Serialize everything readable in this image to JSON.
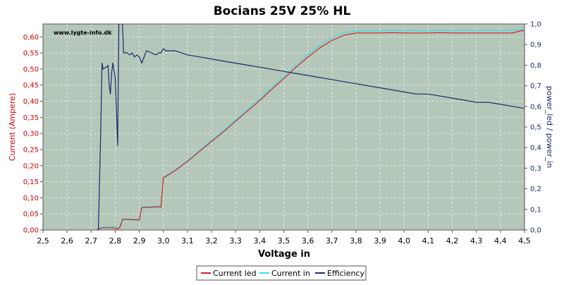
{
  "chart_data": {
    "type": "line",
    "title": "Bocians 25V 25% HL",
    "watermark": "www.lygte-info.dk",
    "xlabel": "Voltage in",
    "ylabel_left": "Current (Ampere)",
    "ylabel_right": "power_led / power_in",
    "xlim": [
      2.5,
      4.5
    ],
    "ylim_left": [
      0,
      0.64
    ],
    "ylim_right": [
      0,
      1.0
    ],
    "x_ticks": [
      "2,5",
      "2,6",
      "2,7",
      "2,8",
      "2,9",
      "3,0",
      "3,1",
      "3,2",
      "3,3",
      "3,4",
      "3,5",
      "3,6",
      "3,7",
      "3,8",
      "3,9",
      "4,0",
      "4,1",
      "4,2",
      "4,3",
      "4,4",
      "4,5"
    ],
    "y_left_ticks": [
      "0,00",
      "0,05",
      "0,10",
      "0,15",
      "0,20",
      "0,25",
      "0,30",
      "0,35",
      "0,40",
      "0,45",
      "0,50",
      "0,55",
      "0,60"
    ],
    "y_right_ticks": [
      "0,0",
      "0,1",
      "0,2",
      "0,3",
      "0,4",
      "0,5",
      "0,6",
      "0,7",
      "0,8",
      "0,9",
      "1,0"
    ],
    "grid": true,
    "legend_position": "bottom-center",
    "colors": {
      "current_led": "#d42020",
      "current_in": "#33e0ee",
      "efficiency": "#1a2a6e",
      "plot_bg": "#b5c7b9",
      "grid": "#e6ece6"
    },
    "series": [
      {
        "name": "Current led",
        "axis": "left",
        "x": [
          2.72,
          2.73,
          2.74,
          2.75,
          2.78,
          2.8,
          2.81,
          2.82,
          2.83,
          2.84,
          2.87,
          2.9,
          2.91,
          2.92,
          2.95,
          2.98,
          2.99,
          3.0,
          3.05,
          3.1,
          3.15,
          3.2,
          3.25,
          3.3,
          3.35,
          3.4,
          3.45,
          3.5,
          3.55,
          3.6,
          3.65,
          3.7,
          3.75,
          3.8,
          3.85,
          3.9,
          3.95,
          4.0,
          4.05,
          4.1,
          4.15,
          4.2,
          4.25,
          4.3,
          4.35,
          4.4,
          4.45,
          4.48,
          4.5
        ],
        "values": [
          0.0,
          0.002,
          0.006,
          0.007,
          0.007,
          0.006,
          0.003,
          0.009,
          0.032,
          0.033,
          0.032,
          0.031,
          0.069,
          0.07,
          0.071,
          0.072,
          0.071,
          0.162,
          0.185,
          0.213,
          0.244,
          0.275,
          0.305,
          0.338,
          0.37,
          0.402,
          0.437,
          0.47,
          0.505,
          0.537,
          0.566,
          0.589,
          0.605,
          0.612,
          0.612,
          0.612,
          0.613,
          0.612,
          0.612,
          0.612,
          0.613,
          0.612,
          0.612,
          0.612,
          0.612,
          0.612,
          0.612,
          0.618,
          0.62
        ]
      },
      {
        "name": "Current in",
        "axis": "left",
        "x": [
          2.72,
          2.73,
          2.74,
          2.75,
          2.78,
          2.8,
          2.81,
          2.82,
          2.83,
          2.84,
          2.87,
          2.9,
          2.91,
          2.92,
          2.95,
          2.98,
          2.99,
          3.0,
          3.05,
          3.1,
          3.15,
          3.2,
          3.25,
          3.3,
          3.35,
          3.4,
          3.45,
          3.5,
          3.55,
          3.6,
          3.65,
          3.7,
          3.75,
          3.8,
          3.85,
          3.9,
          3.95,
          4.0,
          4.05,
          4.1,
          4.15,
          4.2,
          4.25,
          4.3,
          4.35,
          4.4,
          4.45,
          4.48,
          4.5
        ],
        "values": [
          0.0,
          0.003,
          0.008,
          0.009,
          0.009,
          0.008,
          0.004,
          0.01,
          0.034,
          0.035,
          0.034,
          0.033,
          0.071,
          0.072,
          0.073,
          0.074,
          0.073,
          0.164,
          0.187,
          0.215,
          0.247,
          0.28,
          0.31,
          0.343,
          0.376,
          0.408,
          0.444,
          0.478,
          0.512,
          0.545,
          0.574,
          0.597,
          0.612,
          0.618,
          0.619,
          0.619,
          0.62,
          0.62,
          0.619,
          0.619,
          0.62,
          0.62,
          0.62,
          0.62,
          0.62,
          0.62,
          0.62,
          0.623,
          0.627
        ]
      },
      {
        "name": "Efficiency",
        "axis": "right",
        "x": [
          2.73,
          2.74,
          2.745,
          2.75,
          2.76,
          2.765,
          2.77,
          2.775,
          2.78,
          2.785,
          2.79,
          2.8,
          2.81,
          2.815,
          2.82,
          2.83,
          2.835,
          2.84,
          2.85,
          2.86,
          2.87,
          2.88,
          2.89,
          2.9,
          2.91,
          2.93,
          2.95,
          2.97,
          2.98,
          2.99,
          3.0,
          3.01,
          3.05,
          3.1,
          3.15,
          3.2,
          3.25,
          3.3,
          3.35,
          3.4,
          3.45,
          3.5,
          3.55,
          3.6,
          3.65,
          3.7,
          3.75,
          3.8,
          3.85,
          3.9,
          3.95,
          4.0,
          4.05,
          4.1,
          4.15,
          4.2,
          4.25,
          4.3,
          4.35,
          4.4,
          4.45,
          4.5
        ],
        "values": [
          0.0,
          0.5,
          0.81,
          0.78,
          0.79,
          0.79,
          0.8,
          0.7,
          0.66,
          0.76,
          0.81,
          0.74,
          0.41,
          1.0,
          1.0,
          1.0,
          0.86,
          0.86,
          0.86,
          0.85,
          0.86,
          0.84,
          0.85,
          0.84,
          0.81,
          0.87,
          0.86,
          0.85,
          0.86,
          0.86,
          0.88,
          0.87,
          0.87,
          0.85,
          0.84,
          0.83,
          0.82,
          0.81,
          0.8,
          0.79,
          0.78,
          0.77,
          0.76,
          0.75,
          0.74,
          0.73,
          0.72,
          0.71,
          0.7,
          0.69,
          0.68,
          0.67,
          0.66,
          0.66,
          0.65,
          0.64,
          0.63,
          0.62,
          0.62,
          0.61,
          0.6,
          0.59
        ]
      }
    ]
  }
}
